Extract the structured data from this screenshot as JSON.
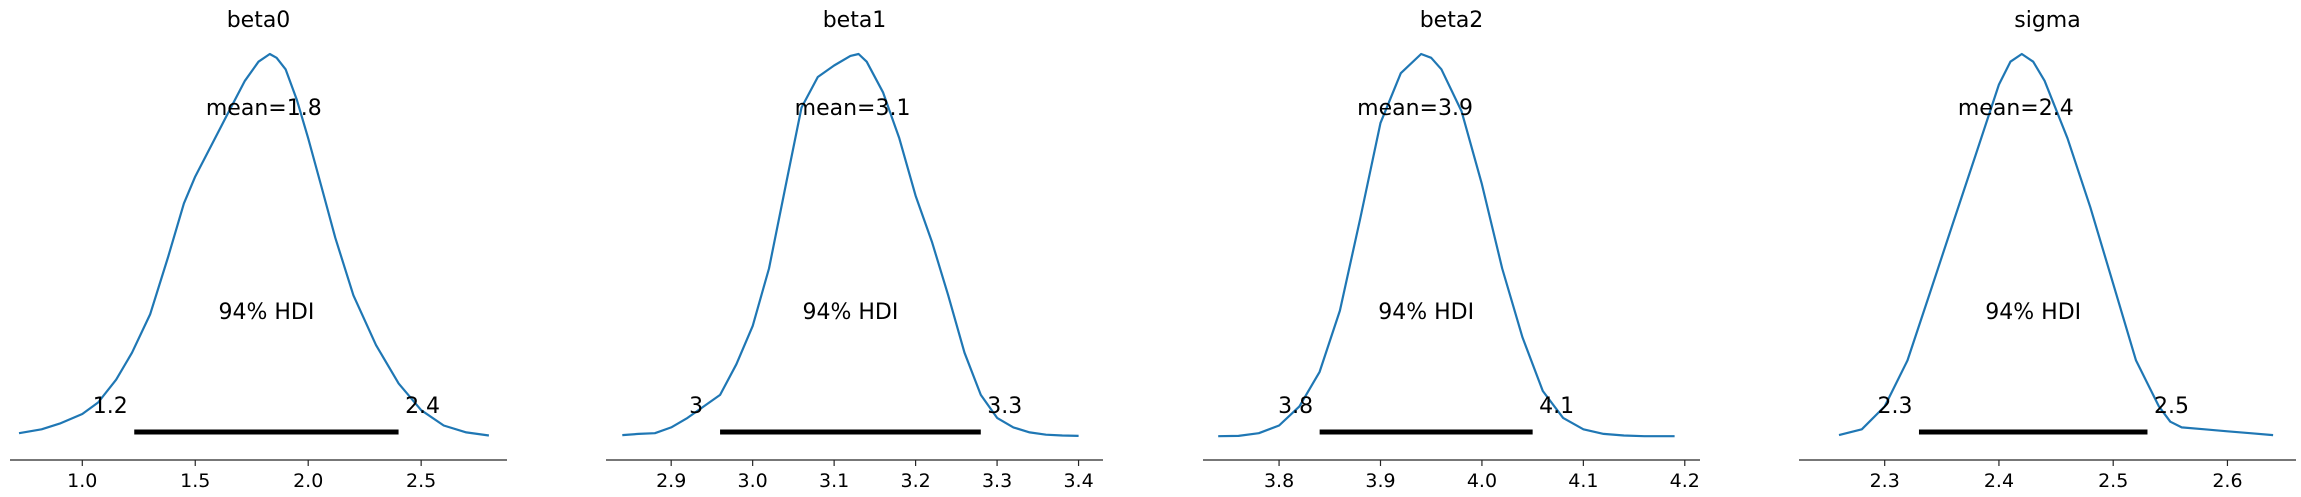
{
  "figure": {
    "colors": {
      "line": "#1f77b4",
      "hdi": "#000000",
      "axis": "#262626"
    }
  },
  "chart_data": [
    {
      "type": "line",
      "title": "beta0",
      "mean_label": "mean=1.8",
      "hdi_label": "94% HDI",
      "hdi": {
        "low": 1.23,
        "high": 2.4,
        "low_label": "1.2",
        "high_label": "2.4"
      },
      "xlim": [
        0.68,
        2.88
      ],
      "xticks": [
        1.0,
        1.5,
        2.0,
        2.5
      ],
      "xtick_labels": [
        "1.0",
        "1.5",
        "2.0",
        "2.5"
      ],
      "density": {
        "x": [
          0.72,
          0.82,
          0.9,
          1.0,
          1.07,
          1.15,
          1.22,
          1.3,
          1.38,
          1.45,
          1.5,
          1.57,
          1.64,
          1.72,
          1.78,
          1.83,
          1.86,
          1.9,
          1.95,
          2.0,
          2.06,
          2.12,
          2.2,
          2.3,
          2.4,
          2.5,
          2.6,
          2.7,
          2.8
        ],
        "y": [
          0.01,
          0.02,
          0.035,
          0.06,
          0.09,
          0.15,
          0.22,
          0.32,
          0.47,
          0.61,
          0.68,
          0.76,
          0.84,
          0.93,
          0.98,
          1.0,
          0.99,
          0.96,
          0.88,
          0.78,
          0.65,
          0.52,
          0.37,
          0.24,
          0.14,
          0.07,
          0.03,
          0.012,
          0.004
        ]
      }
    },
    {
      "type": "line",
      "title": "beta1",
      "mean_label": "mean=3.1",
      "hdi_label": "94% HDI",
      "hdi": {
        "low": 2.96,
        "high": 3.28,
        "low_label": "3",
        "high_label": "3.3"
      },
      "xlim": [
        2.82,
        3.43
      ],
      "xticks": [
        2.9,
        3.0,
        3.1,
        3.2,
        3.3,
        3.4
      ],
      "xtick_labels": [
        "2.9",
        "3.0",
        "3.1",
        "3.2",
        "3.3",
        "3.4"
      ],
      "density": {
        "x": [
          2.84,
          2.86,
          2.88,
          2.9,
          2.92,
          2.94,
          2.96,
          2.98,
          3.0,
          3.02,
          3.04,
          3.06,
          3.08,
          3.1,
          3.12,
          3.13,
          3.14,
          3.16,
          3.18,
          3.2,
          3.22,
          3.24,
          3.26,
          3.28,
          3.3,
          3.32,
          3.34,
          3.36,
          3.38,
          3.4
        ],
        "y": [
          0.005,
          0.008,
          0.01,
          0.025,
          0.05,
          0.08,
          0.11,
          0.19,
          0.29,
          0.44,
          0.65,
          0.86,
          0.94,
          0.97,
          0.995,
          1.0,
          0.98,
          0.9,
          0.78,
          0.63,
          0.51,
          0.37,
          0.22,
          0.11,
          0.05,
          0.025,
          0.012,
          0.006,
          0.004,
          0.003
        ]
      }
    },
    {
      "type": "line",
      "title": "beta2",
      "mean_label": "mean=3.9",
      "hdi_label": "94% HDI",
      "hdi": {
        "low": 3.84,
        "high": 4.05,
        "low_label": "3.8",
        "high_label": "4.1"
      },
      "xlim": [
        3.725,
        4.215
      ],
      "xticks": [
        3.8,
        3.9,
        4.0,
        4.1,
        4.2
      ],
      "xtick_labels": [
        "3.8",
        "3.9",
        "4.0",
        "4.1",
        "4.2"
      ],
      "density": {
        "x": [
          3.74,
          3.76,
          3.78,
          3.8,
          3.82,
          3.84,
          3.86,
          3.88,
          3.9,
          3.92,
          3.94,
          3.95,
          3.96,
          3.98,
          4.0,
          4.02,
          4.04,
          4.06,
          4.08,
          4.1,
          4.12,
          4.14,
          4.16,
          4.19
        ],
        "y": [
          0.002,
          0.003,
          0.01,
          0.03,
          0.08,
          0.17,
          0.33,
          0.57,
          0.82,
          0.95,
          1.0,
          0.99,
          0.96,
          0.85,
          0.66,
          0.44,
          0.26,
          0.12,
          0.05,
          0.02,
          0.008,
          0.004,
          0.002,
          0.002
        ]
      }
    },
    {
      "type": "line",
      "title": "sigma",
      "mean_label": "mean=2.4",
      "hdi_label": "94% HDI",
      "hdi": {
        "low": 2.33,
        "high": 2.53,
        "low_label": "2.3",
        "high_label": "2.5"
      },
      "xlim": [
        2.225,
        2.66
      ],
      "xticks": [
        2.3,
        2.4,
        2.5,
        2.6
      ],
      "xtick_labels": [
        "2.3",
        "2.4",
        "2.5",
        "2.6"
      ],
      "density": {
        "x": [
          2.26,
          2.28,
          2.3,
          2.32,
          2.34,
          2.36,
          2.38,
          2.4,
          2.41,
          2.42,
          2.43,
          2.44,
          2.46,
          2.48,
          2.5,
          2.52,
          2.54,
          2.55,
          2.56,
          2.58,
          2.6,
          2.62,
          2.64
        ],
        "y": [
          0.005,
          0.02,
          0.08,
          0.2,
          0.38,
          0.56,
          0.74,
          0.92,
          0.98,
          1.0,
          0.98,
          0.93,
          0.78,
          0.6,
          0.4,
          0.2,
          0.08,
          0.04,
          0.025,
          0.02,
          0.015,
          0.01,
          0.005
        ]
      }
    }
  ]
}
